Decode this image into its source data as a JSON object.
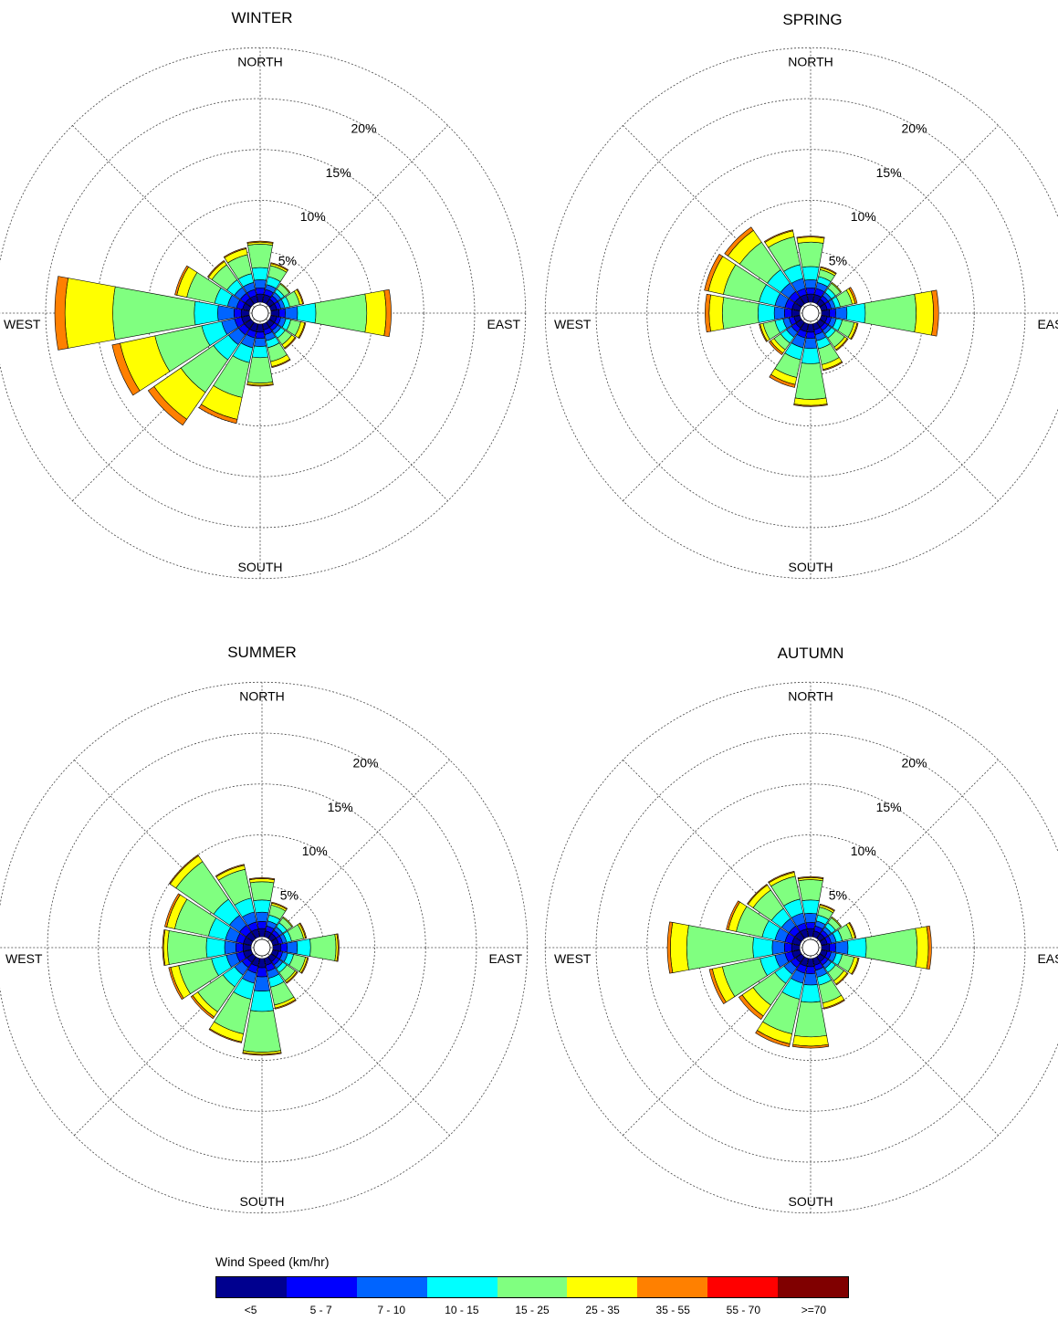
{
  "chart_data": {
    "type": "windrose",
    "directions": [
      "N",
      "NNE",
      "NE",
      "ENE",
      "E",
      "ESE",
      "SE",
      "SSE",
      "S",
      "SSW",
      "SW",
      "WSW",
      "W",
      "WNW",
      "NW",
      "NNW"
    ],
    "direction_labels": {
      "north": "NORTH",
      "east": "EAST",
      "south": "SOUTH",
      "west": "WEST"
    },
    "ring_values": [
      5,
      10,
      15,
      20,
      25
    ],
    "ring_labels": [
      "5%",
      "10%",
      "15%",
      "20%"
    ],
    "legend": {
      "title": "Wind Speed (km/hr)",
      "bins": [
        "<5",
        "5 - 7",
        "7 - 10",
        "10 - 15",
        "15 - 25",
        "25 - 35",
        "35 - 55",
        "55 - 70",
        ">=70"
      ],
      "colors": [
        "#00008f",
        "#0000ff",
        "#0064ff",
        "#00ffff",
        "#80ff80",
        "#ffff00",
        "#ff8000",
        "#ff0000",
        "#800000"
      ]
    },
    "panels": [
      {
        "title": "WINTER",
        "segments": [
          [
            0.8,
            0.6,
            0.8,
            1.2,
            2.3,
            0.2,
            0.1,
            0,
            0
          ],
          [
            0.8,
            0.5,
            0.5,
            0.8,
            1.1,
            0.2,
            0.1,
            0,
            0
          ],
          [
            0.6,
            0.4,
            0.4,
            0.4,
            0.6,
            0.1,
            0,
            0,
            0
          ],
          [
            0.6,
            0.4,
            0.4,
            0.5,
            1.0,
            0.3,
            0.1,
            0,
            0
          ],
          [
            0.8,
            0.6,
            1.2,
            1.8,
            5.0,
            1.9,
            0.5,
            0,
            0
          ],
          [
            0.6,
            0.4,
            0.5,
            0.5,
            1.0,
            0.4,
            0.1,
            0,
            0
          ],
          [
            0.6,
            0.4,
            0.4,
            0.5,
            0.8,
            0.4,
            0.1,
            0,
            0
          ],
          [
            0.6,
            0.5,
            0.6,
            0.7,
            1.4,
            0.5,
            0.1,
            0,
            0
          ],
          [
            0.8,
            0.6,
            0.8,
            1.1,
            2.5,
            0.2,
            0.1,
            0,
            0
          ],
          [
            0.8,
            0.6,
            1.0,
            1.5,
            3.5,
            2.2,
            0.4,
            0,
            0
          ],
          [
            0.8,
            0.7,
            1.2,
            1.8,
            3.9,
            3.2,
            0.7,
            0,
            0
          ],
          [
            0.8,
            0.7,
            1.3,
            2.0,
            4.7,
            3.5,
            0.8,
            0,
            0
          ],
          [
            0.8,
            0.7,
            1.6,
            2.3,
            8.0,
            4.7,
            1.0,
            0,
            0
          ],
          [
            0.7,
            0.6,
            0.9,
            1.3,
            2.8,
            1.0,
            0.2,
            0,
            0
          ],
          [
            0.7,
            0.6,
            0.7,
            0.9,
            1.8,
            0.4,
            0.1,
            0,
            0
          ],
          [
            0.7,
            0.6,
            0.7,
            0.9,
            1.9,
            0.6,
            0.1,
            0,
            0
          ]
        ]
      },
      {
        "title": "SPRING",
        "segments": [
          [
            0.8,
            0.6,
            0.8,
            1.3,
            2.4,
            0.5,
            0.1,
            0,
            0
          ],
          [
            0.8,
            0.6,
            0.6,
            0.6,
            0.7,
            0.2,
            0.1,
            0,
            0
          ],
          [
            0.6,
            0.4,
            0.4,
            0.5,
            0.6,
            0.1,
            0,
            0,
            0
          ],
          [
            0.6,
            0.4,
            0.4,
            0.5,
            1.2,
            0.3,
            0.2,
            0,
            0
          ],
          [
            0.8,
            0.6,
            1.1,
            1.8,
            5.0,
            1.7,
            0.5,
            0,
            0
          ],
          [
            0.6,
            0.4,
            0.5,
            0.6,
            1.2,
            0.3,
            0.1,
            0,
            0
          ],
          [
            0.6,
            0.4,
            0.4,
            0.5,
            1.1,
            0.3,
            0.1,
            0,
            0
          ],
          [
            0.6,
            0.5,
            0.6,
            0.8,
            1.6,
            0.5,
            0.1,
            0,
            0
          ],
          [
            0.8,
            0.6,
            1.0,
            1.5,
            3.5,
            0.6,
            0.1,
            0,
            0
          ],
          [
            0.8,
            0.6,
            1.0,
            1.2,
            1.8,
            0.7,
            0.3,
            0,
            0
          ],
          [
            0.7,
            0.5,
            0.6,
            0.7,
            0.8,
            0.4,
            0.2,
            0,
            0
          ],
          [
            0.6,
            0.5,
            0.6,
            0.8,
            1.2,
            0.3,
            0.1,
            0,
            0
          ],
          [
            0.8,
            0.7,
            1.0,
            1.6,
            3.5,
            1.3,
            0.4,
            0,
            0
          ],
          [
            0.8,
            0.7,
            1.0,
            1.6,
            3.6,
            1.5,
            0.4,
            0,
            0
          ],
          [
            0.8,
            0.7,
            1.0,
            1.6,
            3.3,
            1.4,
            0.4,
            0,
            0
          ],
          [
            0.8,
            0.6,
            1.0,
            1.4,
            2.8,
            0.6,
            0.1,
            0,
            0
          ]
        ]
      },
      {
        "title": "SUMMER",
        "segments": [
          [
            0.8,
            0.7,
            0.9,
            1.2,
            1.8,
            0.3,
            0.1,
            0,
            0
          ],
          [
            0.6,
            0.5,
            0.5,
            0.6,
            1.0,
            0.2,
            0.1,
            0,
            0
          ],
          [
            0.6,
            0.4,
            0.4,
            0.5,
            0.6,
            0.1,
            0,
            0,
            0
          ],
          [
            0.6,
            0.4,
            0.4,
            0.5,
            1.2,
            0.2,
            0.1,
            0,
            0
          ],
          [
            0.8,
            0.6,
            1.0,
            1.3,
            2.5,
            0.2,
            0.1,
            0,
            0
          ],
          [
            0.6,
            0.4,
            0.5,
            0.6,
            1.2,
            0.2,
            0.1,
            0,
            0
          ],
          [
            0.6,
            0.4,
            0.4,
            0.5,
            1.0,
            0.2,
            0.1,
            0,
            0
          ],
          [
            0.7,
            0.6,
            0.7,
            0.9,
            1.8,
            0.3,
            0.1,
            0,
            0
          ],
          [
            0.9,
            0.9,
            1.4,
            2.0,
            4.0,
            0.2,
            0.1,
            0,
            0
          ],
          [
            0.8,
            0.7,
            1.0,
            1.6,
            3.5,
            0.8,
            0.1,
            0,
            0
          ],
          [
            0.7,
            0.6,
            0.9,
            1.4,
            3.0,
            0.6,
            0.2,
            0,
            0
          ],
          [
            0.8,
            0.7,
            1.0,
            1.5,
            3.3,
            0.8,
            0.2,
            0,
            0
          ],
          [
            0.8,
            0.7,
            1.1,
            1.8,
            3.8,
            0.4,
            0.1,
            0,
            0
          ],
          [
            0.8,
            0.7,
            1.1,
            1.7,
            3.4,
            0.8,
            0.2,
            0,
            0
          ],
          [
            0.8,
            0.8,
            1.2,
            1.9,
            4.5,
            0.7,
            0.1,
            0,
            0
          ],
          [
            0.8,
            0.7,
            1.0,
            1.4,
            2.9,
            0.4,
            0.1,
            0,
            0
          ]
        ]
      },
      {
        "title": "AUTUMN",
        "segments": [
          [
            0.8,
            0.6,
            0.9,
            1.3,
            2.0,
            0.2,
            0.1,
            0,
            0
          ],
          [
            0.6,
            0.5,
            0.5,
            0.6,
            0.8,
            0.2,
            0.1,
            0,
            0
          ],
          [
            0.6,
            0.4,
            0.4,
            0.5,
            0.6,
            0.1,
            0,
            0,
            0
          ],
          [
            0.6,
            0.4,
            0.5,
            0.6,
            1.0,
            0.3,
            0.1,
            0,
            0
          ],
          [
            0.8,
            0.6,
            1.2,
            1.8,
            5.0,
            1.1,
            0.3,
            0,
            0
          ],
          [
            0.6,
            0.4,
            0.5,
            0.6,
            1.2,
            0.4,
            0.1,
            0,
            0
          ],
          [
            0.6,
            0.4,
            0.4,
            0.5,
            1.0,
            0.4,
            0.1,
            0,
            0
          ],
          [
            0.7,
            0.5,
            0.7,
            0.8,
            1.8,
            0.5,
            0.1,
            0,
            0
          ],
          [
            0.8,
            0.7,
            1.1,
            1.7,
            3.4,
            0.9,
            0.2,
            0,
            0
          ],
          [
            0.8,
            0.7,
            1.0,
            1.6,
            3.5,
            1.0,
            0.3,
            0,
            0
          ],
          [
            0.7,
            0.6,
            0.8,
            1.1,
            2.6,
            1.3,
            0.4,
            0,
            0
          ],
          [
            0.8,
            0.7,
            1.0,
            1.5,
            3.8,
            1.0,
            0.3,
            0,
            0
          ],
          [
            0.8,
            0.7,
            1.2,
            1.9,
            6.5,
            1.6,
            0.3,
            0,
            0
          ],
          [
            0.8,
            0.7,
            1.0,
            1.3,
            2.6,
            0.8,
            0.2,
            0,
            0
          ],
          [
            0.8,
            0.7,
            0.9,
            1.2,
            2.2,
            0.6,
            0.1,
            0,
            0
          ],
          [
            0.8,
            0.6,
            1.0,
            1.4,
            2.3,
            0.4,
            0.1,
            0,
            0
          ]
        ]
      }
    ]
  }
}
